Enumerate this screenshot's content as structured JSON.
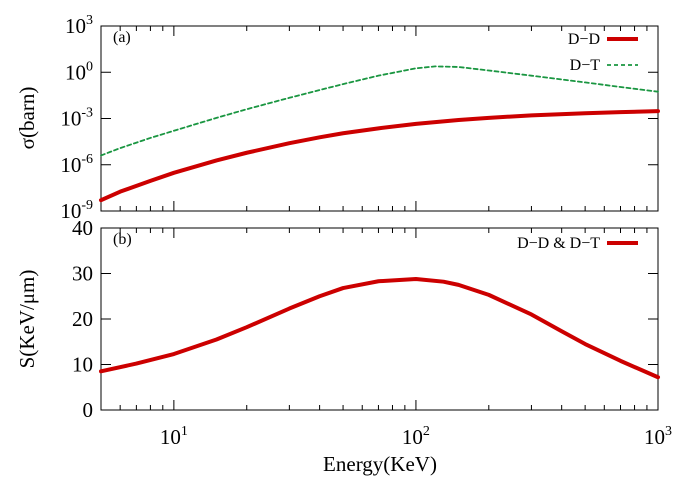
{
  "chart_data": [
    {
      "panel": "top",
      "label": "(a)",
      "type": "line",
      "ylabel": "σ(barn)",
      "yscale": "log",
      "ylim": [
        1e-09,
        1000
      ],
      "xscale": "log",
      "xlim": [
        5,
        1000
      ],
      "y_tick_labels": [
        {
          "value": 1e-09,
          "base": "10",
          "exp": "-9"
        },
        {
          "value": 1e-06,
          "base": "10",
          "exp": "-6"
        },
        {
          "value": 0.001,
          "base": "10",
          "exp": "-3"
        },
        {
          "value": 1,
          "base": "10",
          "exp": "0"
        },
        {
          "value": 1000,
          "base": "10",
          "exp": "3"
        }
      ],
      "legend_position": "top-right",
      "series": [
        {
          "name": "D−D",
          "color": "#cc0000",
          "style": "solid",
          "x": [
            5,
            6,
            8,
            10,
            15,
            20,
            30,
            40,
            50,
            70,
            100,
            150,
            200,
            300,
            500,
            700,
            1000
          ],
          "y": [
            5e-09,
            1.8e-08,
            9e-08,
            3e-07,
            1.9e-06,
            6e-06,
            2.5e-05,
            6e-05,
            0.00011,
            0.00023,
            0.00045,
            0.0008,
            0.0011,
            0.0016,
            0.0022,
            0.0026,
            0.003
          ]
        },
        {
          "name": "D−T",
          "color": "#1a9641",
          "style": "dashed",
          "x": [
            5,
            6,
            8,
            10,
            15,
            20,
            30,
            40,
            50,
            70,
            100,
            120,
            150,
            200,
            300,
            500,
            700,
            1000
          ],
          "y": [
            4e-06,
            1.2e-05,
            5.5e-05,
            0.00016,
            0.0011,
            0.004,
            0.022,
            0.07,
            0.17,
            0.6,
            1.8,
            2.4,
            2.2,
            1.3,
            0.6,
            0.22,
            0.11,
            0.055
          ]
        }
      ]
    },
    {
      "panel": "bottom",
      "label": "(b)",
      "type": "line",
      "ylabel": "S(KeV/μm)",
      "xlabel": "Energy(KeV)",
      "yscale": "linear",
      "ylim": [
        0,
        40
      ],
      "xscale": "log",
      "xlim": [
        5,
        1000
      ],
      "y_tick_labels": [
        "0",
        "10",
        "20",
        "30",
        "40"
      ],
      "x_tick_labels": [
        {
          "value": 10,
          "base": "10",
          "exp": "1"
        },
        {
          "value": 100,
          "base": "10",
          "exp": "2"
        },
        {
          "value": 1000,
          "base": "10",
          "exp": "3"
        }
      ],
      "legend_position": "top-right",
      "series": [
        {
          "name": "D−D & D−T",
          "color": "#cc0000",
          "style": "solid",
          "x": [
            5,
            7,
            10,
            15,
            20,
            30,
            40,
            50,
            70,
            100,
            130,
            150,
            200,
            300,
            400,
            500,
            700,
            1000
          ],
          "y": [
            8.5,
            10.2,
            12.3,
            15.5,
            18.2,
            22.3,
            25.0,
            26.8,
            28.3,
            28.8,
            28.2,
            27.5,
            25.3,
            21.0,
            17.3,
            14.5,
            10.8,
            7.2
          ]
        }
      ]
    }
  ]
}
